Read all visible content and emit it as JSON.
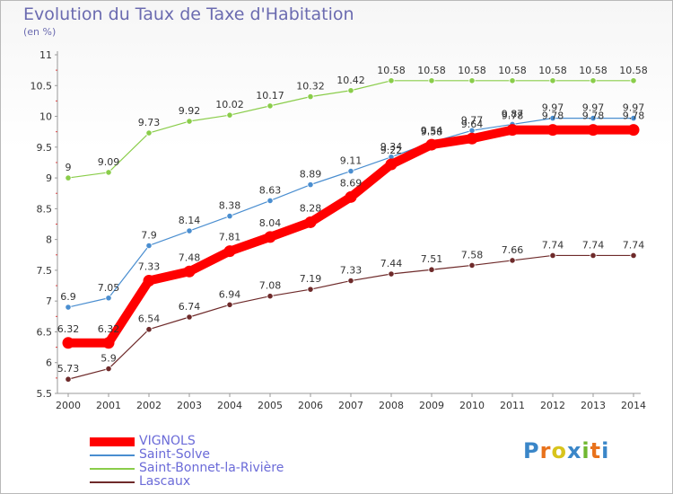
{
  "header": {
    "title": "Evolution du Taux de Taxe d'Habitation",
    "subtitle": "(en %)"
  },
  "logo": {
    "text": "Proxiti",
    "colors": [
      "#3a86c8",
      "#e8721c",
      "#d8c41c",
      "#3a86c8",
      "#70b830",
      "#e8721c",
      "#3a86c8"
    ]
  },
  "chart_data": {
    "type": "line",
    "title": "Evolution du Taux de Taxe d'Habitation",
    "subtitle": "(en %)",
    "xlabel": "",
    "ylabel": "",
    "x": [
      "2000",
      "2001",
      "2002",
      "2003",
      "2004",
      "2005",
      "2006",
      "2007",
      "2008",
      "2009",
      "2010",
      "2011",
      "2012",
      "2013",
      "2014"
    ],
    "ylim": [
      5.5,
      11
    ],
    "yticks": [
      "5.5",
      "6",
      "6.5",
      "7",
      "7.5",
      "8",
      "8.5",
      "9",
      "9.5",
      "10",
      "10.5",
      "11"
    ],
    "grid": "none",
    "legend_position": "bottom",
    "series": [
      {
        "name": "Saint-Bonnet-la-Rivière",
        "color": "#8acd4a",
        "values": [
          9,
          9.09,
          9.73,
          9.92,
          10.02,
          10.17,
          10.32,
          10.42,
          10.58,
          10.58,
          10.58,
          10.58,
          10.58,
          10.58,
          10.58
        ],
        "labels": [
          "9",
          "9.09",
          "9.73",
          "9.92",
          "10.02",
          "10.17",
          "10.32",
          "10.42",
          "10.58",
          "10.58",
          "10.58",
          "10.58",
          "10.58",
          "10.58",
          "10.58"
        ]
      },
      {
        "name": "Saint-Solve",
        "color": "#4a8ed0",
        "values": [
          6.9,
          7.05,
          7.9,
          8.14,
          8.38,
          8.63,
          8.89,
          9.11,
          9.34,
          9.58,
          9.77,
          9.87,
          9.97,
          9.97,
          9.97
        ],
        "labels": [
          "6.9",
          "7.05",
          "7.9",
          "8.14",
          "8.38",
          "8.63",
          "8.89",
          "9.11",
          "9.34",
          "9.58",
          "9.77",
          "9.87",
          "9.97",
          "9.97",
          "9.97"
        ]
      },
      {
        "name": "Lascaux",
        "color": "#6e2a2a",
        "values": [
          5.73,
          5.9,
          6.54,
          6.74,
          6.94,
          7.08,
          7.19,
          7.33,
          7.44,
          7.51,
          7.58,
          7.66,
          7.74,
          7.74,
          7.74
        ],
        "labels": [
          "5.73",
          "5.9",
          "6.54",
          "6.74",
          "6.94",
          "7.08",
          "7.19",
          "7.33",
          "7.44",
          "7.51",
          "7.58",
          "7.66",
          "7.74",
          "7.74",
          "7.74"
        ]
      },
      {
        "name": "VIGNOLS",
        "color": "#ff0000",
        "values": [
          6.32,
          6.32,
          7.33,
          7.48,
          7.81,
          8.04,
          8.28,
          8.69,
          9.22,
          9.54,
          9.64,
          9.78,
          9.78,
          9.78,
          9.78
        ],
        "labels": [
          "6.32",
          "6.32",
          "7.33",
          "7.48",
          "7.81",
          "8.04",
          "8.28",
          "8.69",
          "9.22",
          "9.54",
          "9.64",
          "9.78",
          "9.78",
          "9.78",
          "9.78"
        ]
      }
    ],
    "legend": [
      {
        "name": "VIGNOLS",
        "color": "#ff0000"
      },
      {
        "name": "Saint-Solve",
        "color": "#4a8ed0"
      },
      {
        "name": "Saint-Bonnet-la-Rivière",
        "color": "#8acd4a"
      },
      {
        "name": "Lascaux",
        "color": "#6e2a2a"
      }
    ]
  }
}
